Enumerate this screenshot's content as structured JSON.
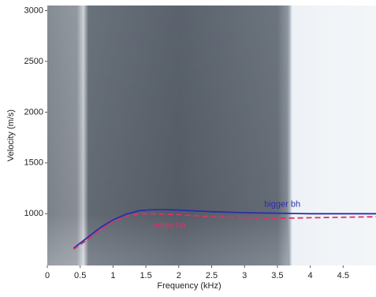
{
  "chart_data": {
    "type": "line",
    "x_label": "Frequency (kHz)",
    "y_label": "Velocity (m/s)",
    "x": [
      0.4,
      0.6,
      0.8,
      1.0,
      1.2,
      1.4,
      1.6,
      1.8,
      2.0,
      2.5,
      3.0,
      3.5,
      4.0,
      4.5,
      5.0
    ],
    "series": [
      {
        "name": "bigger bh",
        "color": "#2b2fa8",
        "line_style": "solid",
        "values": [
          660,
          760,
          860,
          940,
          995,
          1030,
          1040,
          1040,
          1035,
          1020,
          1010,
          1005,
          1000,
          1000,
          1000
        ]
      },
      {
        "name": "origin bh",
        "color": "#e0306a",
        "line_style": "dashed",
        "values": [
          650,
          740,
          840,
          920,
          975,
          1000,
          1000,
          995,
          990,
          970,
          960,
          955,
          960,
          965,
          970
        ]
      }
    ],
    "xlim": [
      0,
      5
    ],
    "ylim": [
      490,
      3050
    ],
    "xticks": [
      0,
      0.5,
      1,
      1.5,
      2,
      2.5,
      3,
      3.5,
      4,
      4.5
    ],
    "yticks": [
      1000,
      1500,
      2000,
      2500,
      3000
    ]
  }
}
